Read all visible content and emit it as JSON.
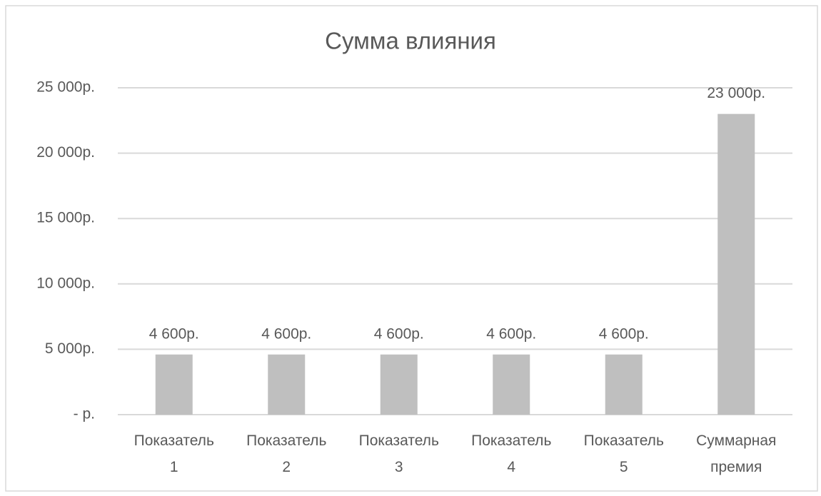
{
  "chart_data": {
    "type": "bar",
    "title": "Сумма влияния",
    "categories": [
      "Показатель 1",
      "Показатель 2",
      "Показатель 3",
      "Показатель 4",
      "Показатель 5",
      "Суммарная премия"
    ],
    "values": [
      4600,
      4600,
      4600,
      4600,
      4600,
      23000
    ],
    "value_labels": [
      "4 600р.",
      "4 600р.",
      "4 600р.",
      "4 600р.",
      "4 600р.",
      "23 000р."
    ],
    "color": "#bfbfbf",
    "ylim": [
      0,
      25000
    ],
    "yticks": [
      {
        "value": 0,
        "label": "-  р."
      },
      {
        "value": 5000,
        "label": "5 000р."
      },
      {
        "value": 10000,
        "label": "10 000р."
      },
      {
        "value": 15000,
        "label": "15 000р."
      },
      {
        "value": 20000,
        "label": "20 000р."
      },
      {
        "value": 25000,
        "label": "25 000р."
      }
    ],
    "grid": true
  }
}
